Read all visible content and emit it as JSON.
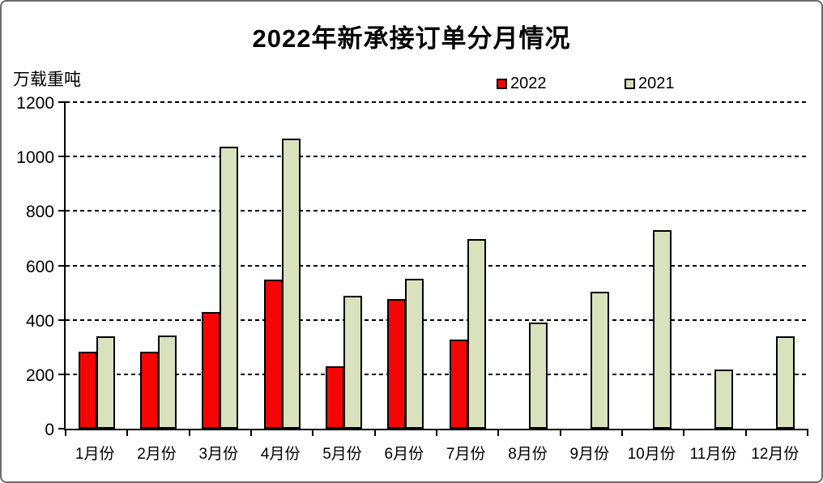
{
  "chart_data": {
    "type": "bar",
    "title": "2022年新承接订单分月情况",
    "unit_label": "万载重吨",
    "categories": [
      "1月份",
      "2月份",
      "3月份",
      "4月份",
      "5月份",
      "6月份",
      "7月份",
      "8月份",
      "9月份",
      "10月份",
      "11月份",
      "12月份"
    ],
    "series": [
      {
        "name": "2022",
        "color": "#f60505",
        "values": [
          283,
          283,
          428,
          547,
          228,
          475,
          328,
          null,
          null,
          null,
          null,
          null
        ]
      },
      {
        "name": "2021",
        "color": "#d9e1bd",
        "values": [
          340,
          343,
          1037,
          1066,
          488,
          550,
          698,
          390,
          504,
          730,
          217,
          340
        ]
      }
    ],
    "ylim": [
      0,
      1200
    ],
    "ytick_step": 200,
    "grid": "horizontal-dashed",
    "legend_position": "top",
    "bar_border_color": "#000000"
  }
}
